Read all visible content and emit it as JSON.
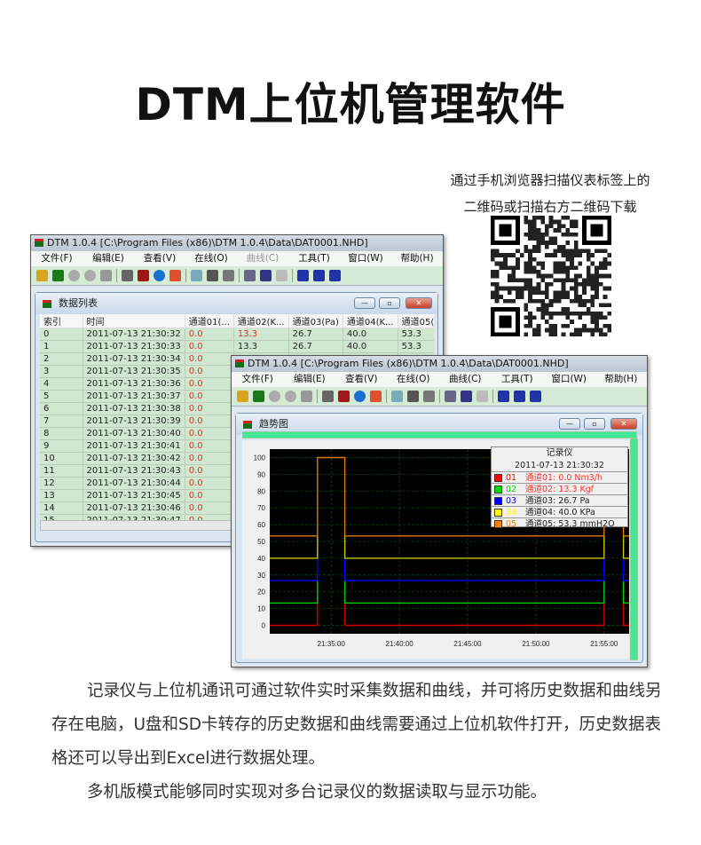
{
  "title": "DTM上位机管理软件",
  "qr_caption": [
    "通过手机浏览器扫描仪表标签上的",
    "二维码或扫描右方二维码下载"
  ],
  "app": {
    "window_title": "DTM 1.0.4 [C:\\Program Files (x86)\\DTM 1.0.4\\Data\\DAT0001.NHD]",
    "menu": [
      {
        "label": "文件(F)"
      },
      {
        "label": "编辑(E)"
      },
      {
        "label": "查看(V)"
      },
      {
        "label": "在线(O)"
      },
      {
        "label": "曲线(C)"
      },
      {
        "label": "工具(T)"
      },
      {
        "label": "窗口(W)"
      },
      {
        "label": "帮助(H)"
      }
    ],
    "toolbar_icons": [
      "open-folder-icon",
      "trend-icon",
      "record-icon",
      "pause-icon",
      "stop-icon",
      "table-icon",
      "sum-icon",
      "info-icon",
      "gauge-icon",
      "export-icon",
      "print-icon",
      "print-preview-icon",
      "copy-icon",
      "zoom-in-icon",
      "zoom-out-icon",
      "cascade-icon",
      "tile-horizontal-icon",
      "tile-vertical-icon"
    ]
  },
  "data_list": {
    "title": "数据列表",
    "columns": [
      "索引",
      "时间",
      "通道01(...",
      "通道02(K...",
      "通道03(Pa)",
      "通道04(K...",
      "通道05(..."
    ],
    "rows": [
      [
        "0",
        "2011-07-13 21:30:32",
        "0.0",
        "13.3",
        "26.7",
        "40.0",
        "53.3"
      ],
      [
        "1",
        "2011-07-13 21:30:33",
        "0.0",
        "13.3",
        "26.7",
        "40.0",
        "53.3"
      ],
      [
        "2",
        "2011-07-13 21:30:34",
        "0.0"
      ],
      [
        "3",
        "2011-07-13 21:30:35",
        "0.0"
      ],
      [
        "4",
        "2011-07-13 21:30:36",
        "0.0"
      ],
      [
        "5",
        "2011-07-13 21:30:37",
        "0.0"
      ],
      [
        "6",
        "2011-07-13 21:30:38",
        "0.0"
      ],
      [
        "7",
        "2011-07-13 21:30:39",
        "0.0"
      ],
      [
        "8",
        "2011-07-13 21:30:40",
        "0.0"
      ],
      [
        "9",
        "2011-07-13 21:30:41",
        "0.0"
      ],
      [
        "10",
        "2011-07-13 21:30:42",
        "0.0"
      ],
      [
        "11",
        "2011-07-13 21:30:43",
        "0.0"
      ],
      [
        "12",
        "2011-07-13 21:30:44",
        "0.0"
      ],
      [
        "13",
        "2011-07-13 21:30:45",
        "0.0"
      ],
      [
        "14",
        "2011-07-13 21:30:46",
        "0.0"
      ],
      [
        "15",
        "2011-07-13 21:30:47",
        "0.0"
      ]
    ]
  },
  "trend": {
    "title": "趋势图",
    "legend": {
      "title": "记录仪",
      "time": "2011-07-13 21:30:32",
      "items": [
        {
          "id": "01",
          "text": "通道01: 0.0 Nm3/h",
          "color": "#ff0000",
          "text_color": "#ff3030"
        },
        {
          "id": "02",
          "text": "通道02: 13.3 Kgf",
          "color": "#00e000",
          "text_color": "#ff3030"
        },
        {
          "id": "03",
          "text": "通道03: 26.7 Pa",
          "color": "#0000ff",
          "text_color": "#222222"
        },
        {
          "id": "04",
          "text": "通道04: 40.0 KPa",
          "color": "#ffff00",
          "text_color": "#222222"
        },
        {
          "id": "05",
          "text": "通道05: 53.3 mmH2O",
          "color": "#ff8000",
          "text_color": "#222222"
        }
      ]
    }
  },
  "chart_data": {
    "type": "line",
    "step": true,
    "xlim": [
      "21:30:30",
      "21:56:50"
    ],
    "ylim": [
      -5,
      105
    ],
    "xticks": [
      "21:35:00",
      "21:40:00",
      "21:45:00",
      "21:50:00",
      "21:55:00"
    ],
    "yticks": [
      0,
      10,
      20,
      30,
      40,
      50,
      60,
      70,
      80,
      90,
      100
    ],
    "grid": true,
    "legend": "top-right",
    "series": [
      {
        "id": "01",
        "color": "#d00000",
        "points": [
          [
            "21:30:30",
            0
          ],
          [
            "21:34:00",
            0
          ],
          [
            "21:34:00",
            13.3
          ],
          [
            "21:34:00",
            null
          ],
          [
            "21:36:00",
            13.3
          ],
          [
            "21:36:00",
            0
          ],
          [
            "21:55:00",
            0
          ],
          [
            "21:55:00",
            13.3
          ],
          [
            "21:55:00",
            null
          ],
          [
            "21:56:25",
            13.3
          ],
          [
            "21:56:25",
            0
          ],
          [
            "21:56:50",
            0
          ]
        ]
      },
      {
        "id": "02",
        "color": "#00d000",
        "points": [
          [
            "21:30:30",
            13.3
          ],
          [
            "21:34:00",
            13.3
          ],
          [
            "21:34:00",
            26.7
          ],
          [
            "21:34:00",
            null
          ],
          [
            "21:36:00",
            26.7
          ],
          [
            "21:36:00",
            13.3
          ],
          [
            "21:55:00",
            13.3
          ],
          [
            "21:55:00",
            26.7
          ],
          [
            "21:55:00",
            null
          ],
          [
            "21:56:25",
            26.7
          ],
          [
            "21:56:25",
            13.3
          ],
          [
            "21:56:50",
            13.3
          ]
        ]
      },
      {
        "id": "03",
        "color": "#0000ff",
        "points": [
          [
            "21:30:30",
            26.7
          ],
          [
            "21:34:00",
            26.7
          ],
          [
            "21:34:00",
            40
          ],
          [
            "21:34:00",
            null
          ],
          [
            "21:36:00",
            40
          ],
          [
            "21:36:00",
            26.7
          ],
          [
            "21:55:00",
            26.7
          ],
          [
            "21:55:00",
            40
          ],
          [
            "21:55:00",
            null
          ],
          [
            "21:56:25",
            40
          ],
          [
            "21:56:25",
            26.7
          ],
          [
            "21:56:50",
            26.7
          ]
        ]
      },
      {
        "id": "04",
        "color": "#c8c800",
        "points": [
          [
            "21:30:30",
            40
          ],
          [
            "21:34:00",
            40
          ],
          [
            "21:34:00",
            53.3
          ],
          [
            "21:34:00",
            null
          ],
          [
            "21:36:00",
            53.3
          ],
          [
            "21:36:00",
            40
          ],
          [
            "21:55:00",
            40
          ],
          [
            "21:55:00",
            53.3
          ],
          [
            "21:55:00",
            null
          ],
          [
            "21:56:25",
            53.3
          ],
          [
            "21:56:25",
            40
          ],
          [
            "21:56:50",
            40
          ]
        ]
      },
      {
        "id": "05",
        "color": "#e07800",
        "points": [
          [
            "21:30:30",
            53.3
          ],
          [
            "21:34:00",
            53.3
          ],
          [
            "21:34:00",
            100
          ],
          [
            "21:36:00",
            100
          ],
          [
            "21:36:00",
            53.3
          ],
          [
            "21:55:00",
            53.3
          ],
          [
            "21:55:00",
            66.7
          ],
          [
            "21:55:00",
            null
          ],
          [
            "21:56:25",
            66.7
          ],
          [
            "21:56:25",
            53.3
          ],
          [
            "21:56:50",
            53.3
          ]
        ]
      }
    ]
  },
  "paragraphs": [
    "记录仪与上位机通讯可通过软件实时采集数据和曲线，并可将历史数据和曲线另存在电脑，U盘和SD卡转存的历史数据和曲线需要通过上位机软件打开，历史数据表格还可以导出到Excel进行数据处理。",
    "多机版模式能够同时实现对多台记录仪的数据读取与显示功能。"
  ]
}
